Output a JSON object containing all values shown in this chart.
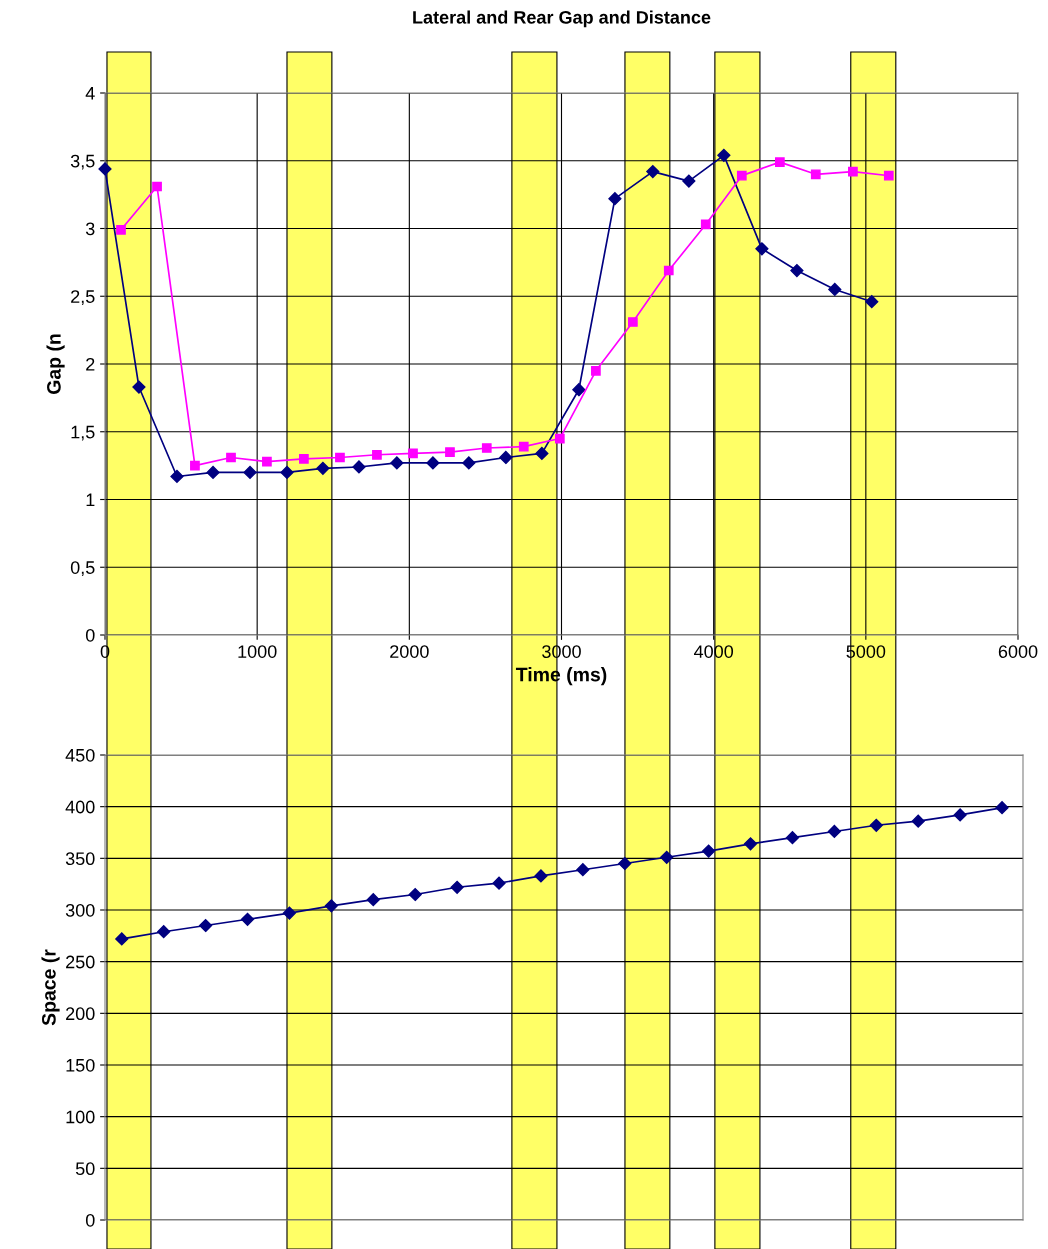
{
  "chart_data": [
    {
      "type": "line",
      "title": "Lateral and Rear Gap and Distance",
      "xlabel": "Time (ms)",
      "ylabel": "Gap (n",
      "series": [
        {
          "color": "#000080",
          "marker": "diamond",
          "x": [
            0,
            223,
            473,
            710,
            953,
            1196,
            1432,
            1669,
            1918,
            2155,
            2391,
            2634,
            2871,
            3114,
            3351,
            3600,
            3837,
            4067,
            4317,
            4547,
            4796,
            5039
          ],
          "values": [
            3.44,
            1.83,
            1.17,
            1.2,
            1.2,
            1.2,
            1.23,
            1.24,
            1.27,
            1.27,
            1.27,
            1.31,
            1.34,
            1.81,
            3.22,
            3.42,
            3.35,
            3.54,
            2.85,
            2.69,
            2.55,
            2.46
          ]
        },
        {
          "color": "#ff00ff",
          "marker": "square",
          "x": [
            105,
            342,
            591,
            828,
            1064,
            1307,
            1544,
            1787,
            2024,
            2267,
            2509,
            2752,
            2989,
            3226,
            3469,
            3705,
            3948,
            4185,
            4435,
            4671,
            4915,
            5151
          ],
          "values": [
            2.99,
            3.31,
            1.25,
            1.31,
            1.28,
            1.3,
            1.31,
            1.33,
            1.34,
            1.35,
            1.38,
            1.39,
            1.45,
            1.95,
            2.31,
            2.69,
            3.03,
            3.39,
            3.49,
            3.4,
            3.42,
            3.39
          ]
        }
      ],
      "xlim": [
        0,
        6000
      ],
      "xticks": [
        0,
        1000,
        2000,
        3000,
        4000,
        5000,
        6000
      ],
      "ylim": [
        0,
        4
      ],
      "yticks": [
        0,
        {
          "value": 0.5,
          "label": "0,5"
        },
        1,
        {
          "value": 1.5,
          "label": "1,5"
        },
        2,
        {
          "value": 2.5,
          "label": "2,5"
        },
        3,
        {
          "value": 3.5,
          "label": "3,5"
        },
        4
      ],
      "grid": true,
      "bands": [
        {
          "axis": "x",
          "from": 13,
          "to": 302,
          "color": "#ffff66"
        },
        {
          "axis": "x",
          "from": 1196,
          "to": 1491,
          "color": "#ffff66"
        },
        {
          "axis": "x",
          "from": 2674,
          "to": 2970,
          "color": "#ffff66"
        },
        {
          "axis": "x",
          "from": 3417,
          "to": 3712,
          "color": "#ffff66"
        },
        {
          "axis": "x",
          "from": 4008,
          "to": 4304,
          "color": "#ffff66"
        },
        {
          "axis": "x",
          "from": 4901,
          "to": 5197,
          "color": "#ffff66"
        }
      ]
    },
    {
      "type": "line",
      "ylabel": "Space (r",
      "categories": [
        null,
        null,
        null,
        null,
        null,
        null,
        null,
        null,
        null,
        null,
        null,
        null,
        null,
        null,
        null,
        null,
        null,
        null,
        null,
        null,
        null,
        null
      ],
      "series": [
        {
          "color": "#000080",
          "marker": "diamond",
          "values": [
            272,
            279,
            285,
            291,
            297,
            304,
            310,
            315,
            322,
            326,
            333,
            339,
            345,
            351,
            357,
            364,
            370,
            376,
            382,
            386,
            392,
            399
          ]
        }
      ],
      "ylim": [
        0,
        450
      ],
      "yticks": [
        0,
        50,
        100,
        150,
        200,
        250,
        300,
        350,
        400,
        450
      ],
      "grid": "y",
      "tick_labels": "y"
    }
  ]
}
